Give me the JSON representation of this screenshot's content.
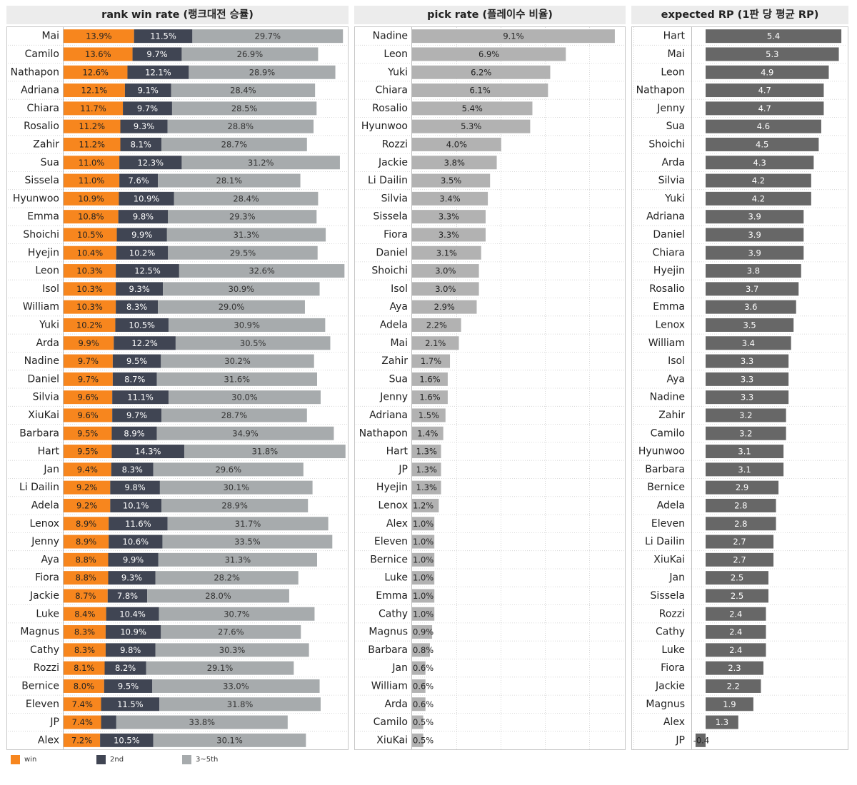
{
  "colors": {
    "win": "#f7861e",
    "second": "#404553",
    "rest": "#a7abad",
    "pick": "#b2b2b2",
    "rp": "#676767"
  },
  "legend": [
    {
      "key": "win",
      "label": "win",
      "color": "#f7861e"
    },
    {
      "key": "second",
      "label": "2nd",
      "color": "#404553"
    },
    {
      "key": "rest",
      "label": "3~5th",
      "color": "#a7abad"
    }
  ],
  "chart_data": [
    {
      "type": "bar",
      "stacked": true,
      "orientation": "horizontal",
      "title": "rank win rate (랭크대전 승률)",
      "categories": [
        "Mai",
        "Camilo",
        "Nathapon",
        "Adriana",
        "Chiara",
        "Rosalio",
        "Zahir",
        "Sua",
        "Sissela",
        "Hyunwoo",
        "Emma",
        "Shoichi",
        "Hyejin",
        "Leon",
        "Isol",
        "William",
        "Yuki",
        "Arda",
        "Nadine",
        "Daniel",
        "Silvia",
        "XiuKai",
        "Barbara",
        "Hart",
        "Jan",
        "Li Dailin",
        "Adela",
        "Lenox",
        "Jenny",
        "Aya",
        "Fiora",
        "Jackie",
        "Luke",
        "Magnus",
        "Cathy",
        "Rozzi",
        "Bernice",
        "Eleven",
        "JP",
        "Alex"
      ],
      "series": [
        {
          "name": "win",
          "labels": [
            "13.9%",
            "13.6%",
            "12.6%",
            "12.1%",
            "11.7%",
            "11.2%",
            "11.2%",
            "11.0%",
            "11.0%",
            "10.9%",
            "10.8%",
            "10.5%",
            "10.4%",
            "10.3%",
            "10.3%",
            "10.3%",
            "10.2%",
            "9.9%",
            "9.7%",
            "9.7%",
            "9.6%",
            "9.6%",
            "9.5%",
            "9.5%",
            "9.4%",
            "9.2%",
            "9.2%",
            "8.9%",
            "8.9%",
            "8.8%",
            "8.8%",
            "8.7%",
            "8.4%",
            "8.3%",
            "8.3%",
            "8.1%",
            "8.0%",
            "7.4%",
            "7.4%",
            "7.2%"
          ],
          "values": [
            13.9,
            13.6,
            12.6,
            12.1,
            11.7,
            11.2,
            11.2,
            11.0,
            11.0,
            10.9,
            10.8,
            10.5,
            10.4,
            10.3,
            10.3,
            10.3,
            10.2,
            9.9,
            9.7,
            9.7,
            9.6,
            9.6,
            9.5,
            9.5,
            9.4,
            9.2,
            9.2,
            8.9,
            8.9,
            8.8,
            8.8,
            8.7,
            8.4,
            8.3,
            8.3,
            8.1,
            8.0,
            7.4,
            7.4,
            7.2
          ]
        },
        {
          "name": "2nd",
          "labels": [
            "11.5%",
            "9.7%",
            "12.1%",
            "9.1%",
            "9.7%",
            "9.3%",
            "8.1%",
            "12.3%",
            "7.6%",
            "10.9%",
            "9.8%",
            "9.9%",
            "10.2%",
            "12.5%",
            "9.3%",
            "8.3%",
            "10.5%",
            "12.2%",
            "9.5%",
            "8.7%",
            "11.1%",
            "9.7%",
            "8.9%",
            "14.3%",
            "8.3%",
            "9.8%",
            "10.1%",
            "11.6%",
            "10.6%",
            "9.9%",
            "9.3%",
            "7.8%",
            "10.4%",
            "10.9%",
            "9.8%",
            "8.2%",
            "9.5%",
            "11.5%",
            "",
            "10.5%"
          ],
          "values": [
            11.5,
            9.7,
            12.1,
            9.1,
            9.7,
            9.3,
            8.1,
            12.3,
            7.6,
            10.9,
            9.8,
            9.9,
            10.2,
            12.5,
            9.3,
            8.3,
            10.5,
            12.2,
            9.5,
            8.7,
            11.1,
            9.7,
            8.9,
            14.3,
            8.3,
            9.8,
            10.1,
            11.6,
            10.6,
            9.9,
            9.3,
            7.8,
            10.4,
            10.9,
            9.8,
            8.2,
            9.5,
            11.5,
            3.0,
            10.5
          ]
        },
        {
          "name": "3~5th",
          "labels": [
            "29.7%",
            "26.9%",
            "28.9%",
            "28.4%",
            "28.5%",
            "28.8%",
            "28.7%",
            "31.2%",
            "28.1%",
            "28.4%",
            "29.3%",
            "31.3%",
            "29.5%",
            "32.6%",
            "30.9%",
            "29.0%",
            "30.9%",
            "30.5%",
            "30.2%",
            "31.6%",
            "30.0%",
            "28.7%",
            "34.9%",
            "31.8%",
            "29.6%",
            "30.1%",
            "28.9%",
            "31.7%",
            "33.5%",
            "31.3%",
            "28.2%",
            "28.0%",
            "30.7%",
            "27.6%",
            "30.3%",
            "29.1%",
            "33.0%",
            "31.8%",
            "33.8%",
            "30.1%"
          ],
          "values": [
            29.7,
            26.9,
            28.9,
            28.4,
            28.5,
            28.8,
            28.7,
            31.2,
            28.1,
            28.4,
            29.3,
            31.3,
            29.5,
            32.6,
            30.9,
            29.0,
            30.9,
            30.5,
            30.2,
            31.6,
            30.0,
            28.7,
            34.9,
            31.8,
            29.6,
            30.1,
            28.9,
            31.7,
            33.5,
            31.3,
            28.2,
            28.0,
            30.7,
            27.6,
            30.3,
            29.1,
            33.0,
            31.8,
            33.8,
            30.1
          ]
        }
      ],
      "xlim": [
        0,
        56
      ],
      "legend_position": "bottom-left"
    },
    {
      "type": "bar",
      "orientation": "horizontal",
      "title": "pick rate (플레이수 비율)",
      "categories": [
        "Nadine",
        "Leon",
        "Yuki",
        "Chiara",
        "Rosalio",
        "Hyunwoo",
        "Rozzi",
        "Jackie",
        "Li Dailin",
        "Silvia",
        "Sissela",
        "Fiora",
        "Daniel",
        "Shoichi",
        "Isol",
        "Aya",
        "Adela",
        "Mai",
        "Zahir",
        "Sua",
        "Jenny",
        "Adriana",
        "Nathapon",
        "Hart",
        "JP",
        "Hyejin",
        "Lenox",
        "Alex",
        "Eleven",
        "Bernice",
        "Luke",
        "Emma",
        "Cathy",
        "Magnus",
        "Barbara",
        "Jan",
        "William",
        "Arda",
        "Camilo",
        "XiuKai"
      ],
      "labels": [
        "9.1%",
        "6.9%",
        "6.2%",
        "6.1%",
        "5.4%",
        "5.3%",
        "4.0%",
        "3.8%",
        "3.5%",
        "3.4%",
        "3.3%",
        "3.3%",
        "3.1%",
        "3.0%",
        "3.0%",
        "2.9%",
        "2.2%",
        "2.1%",
        "1.7%",
        "1.6%",
        "1.6%",
        "1.5%",
        "1.4%",
        "1.3%",
        "1.3%",
        "1.3%",
        "1.2%",
        "1.0%",
        "1.0%",
        "1.0%",
        "1.0%",
        "1.0%",
        "1.0%",
        "0.9%",
        "0.8%",
        "0.6%",
        "0.6%",
        "0.6%",
        "0.5%",
        "0.5%"
      ],
      "values": [
        9.1,
        6.9,
        6.2,
        6.1,
        5.4,
        5.3,
        4.0,
        3.8,
        3.5,
        3.4,
        3.3,
        3.3,
        3.1,
        3.0,
        3.0,
        2.9,
        2.2,
        2.1,
        1.7,
        1.6,
        1.6,
        1.5,
        1.4,
        1.3,
        1.3,
        1.3,
        1.2,
        1.0,
        1.0,
        1.0,
        1.0,
        1.0,
        1.0,
        0.9,
        0.8,
        0.6,
        0.6,
        0.6,
        0.5,
        0.5
      ],
      "xlim": [
        0,
        10
      ],
      "grid": true
    },
    {
      "type": "bar",
      "orientation": "horizontal",
      "title": "expected RP (1판 당 평균 RP)",
      "categories": [
        "Hart",
        "Mai",
        "Leon",
        "Nathapon",
        "Jenny",
        "Sua",
        "Shoichi",
        "Arda",
        "Silvia",
        "Yuki",
        "Adriana",
        "Daniel",
        "Chiara",
        "Hyejin",
        "Rosalio",
        "Emma",
        "Lenox",
        "William",
        "Isol",
        "Aya",
        "Nadine",
        "Zahir",
        "Camilo",
        "Hyunwoo",
        "Barbara",
        "Bernice",
        "Adela",
        "Eleven",
        "Li Dailin",
        "XiuKai",
        "Jan",
        "Sissela",
        "Rozzi",
        "Cathy",
        "Luke",
        "Fiora",
        "Jackie",
        "Magnus",
        "Alex",
        "JP"
      ],
      "labels": [
        "5.4",
        "5.3",
        "4.9",
        "4.7",
        "4.7",
        "4.6",
        "4.5",
        "4.3",
        "4.2",
        "4.2",
        "3.9",
        "3.9",
        "3.9",
        "3.8",
        "3.7",
        "3.6",
        "3.5",
        "3.4",
        "3.3",
        "3.3",
        "3.3",
        "3.2",
        "3.2",
        "3.1",
        "3.1",
        "2.9",
        "2.8",
        "2.8",
        "2.7",
        "2.7",
        "2.5",
        "2.5",
        "2.4",
        "2.4",
        "2.4",
        "2.3",
        "2.2",
        "1.9",
        "1.3",
        "-0.4"
      ],
      "values": [
        5.4,
        5.3,
        4.9,
        4.7,
        4.7,
        4.6,
        4.5,
        4.3,
        4.2,
        4.2,
        3.9,
        3.9,
        3.9,
        3.8,
        3.7,
        3.6,
        3.5,
        3.4,
        3.3,
        3.3,
        3.3,
        3.2,
        3.2,
        3.1,
        3.1,
        2.9,
        2.8,
        2.8,
        2.7,
        2.7,
        2.5,
        2.5,
        2.4,
        2.4,
        2.4,
        2.3,
        2.2,
        1.9,
        1.3,
        -0.4
      ],
      "xlim": [
        -0.5,
        5.75
      ]
    }
  ]
}
